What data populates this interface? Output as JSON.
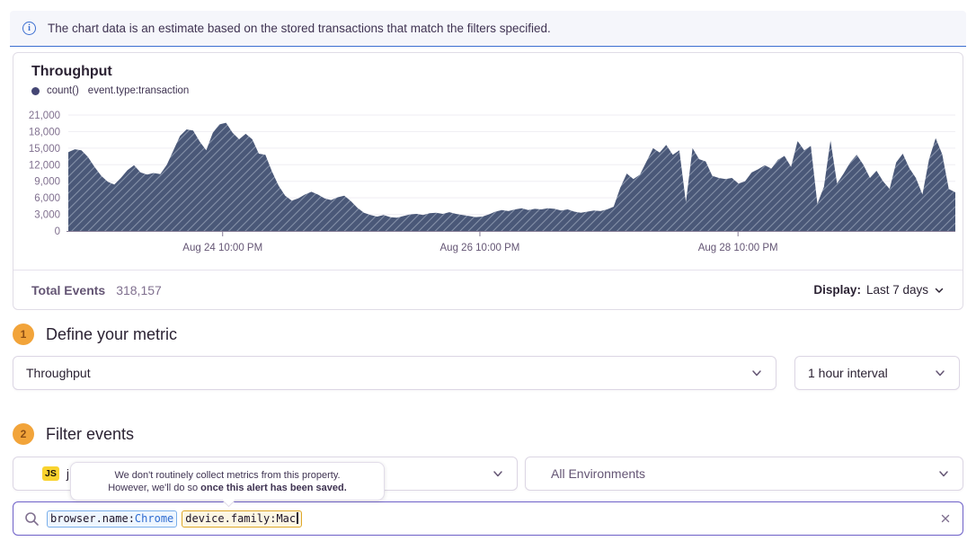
{
  "banner": {
    "text": "The chart data is an estimate based on the stored transactions that match the filters specified."
  },
  "chart_panel": {
    "title": "Throughput",
    "legend_series": "count()",
    "legend_query": "event.type:transaction",
    "total_label": "Total Events",
    "total_value": "318,157",
    "display_label": "Display:",
    "display_value": "Last 7 days"
  },
  "chart_data": {
    "type": "area",
    "title": "Throughput",
    "series_name": "count()",
    "query": "event.type:transaction",
    "ylabel": "",
    "xlabel": "",
    "ylim": [
      0,
      21000
    ],
    "yticks": [
      0,
      3000,
      6000,
      9000,
      12000,
      15000,
      18000,
      21000
    ],
    "xticks": [
      {
        "label": "Aug 24 10:00 PM",
        "f": 0.174
      },
      {
        "label": "Aug 26 10:00 PM",
        "f": 0.464
      },
      {
        "label": "Aug 28 10:00 PM",
        "f": 0.755
      }
    ],
    "period": "Last 7 days",
    "interval": "1 hour",
    "total_events": 318157,
    "grid": true,
    "fill_color": "#4a5878",
    "hatch_color": "#9aa5ba",
    "values": [
      14300,
      14800,
      14600,
      13400,
      11600,
      10000,
      8900,
      8400,
      9600,
      11000,
      11900,
      10600,
      10200,
      10500,
      10300,
      12000,
      14600,
      17200,
      18400,
      18200,
      16200,
      14600,
      17800,
      19300,
      19600,
      17800,
      16600,
      17600,
      16600,
      14000,
      13800,
      10800,
      8200,
      6400,
      5500,
      5900,
      6600,
      7100,
      6600,
      5900,
      5600,
      6100,
      6400,
      5400,
      4200,
      3300,
      2900,
      2600,
      2900,
      2500,
      2400,
      2700,
      3000,
      3100,
      2900,
      3200,
      3300,
      3100,
      3400,
      3100,
      2900,
      2700,
      2500,
      2600,
      3000,
      3500,
      3800,
      3600,
      3900,
      4100,
      3800,
      4000,
      3900,
      4100,
      4000,
      3700,
      3900,
      3500,
      3300,
      3500,
      3700,
      3600,
      3900,
      4400,
      7800,
      10400,
      9400,
      10200,
      12600,
      15000,
      14200,
      15600,
      13800,
      14600,
      5200,
      15000,
      13000,
      12600,
      10000,
      9600,
      9400,
      9600,
      8600,
      9000,
      10600,
      11200,
      11900,
      11300,
      12900,
      13600,
      11600,
      16300,
      14600,
      15400,
      4900,
      8000,
      16400,
      8600,
      10400,
      12400,
      13800,
      12000,
      9600,
      10900,
      9000,
      7600,
      12400,
      14000,
      11400,
      9600,
      6600,
      13000,
      16800,
      13900,
      7600,
      7000
    ]
  },
  "sections": {
    "metric": {
      "number": "1",
      "title": "Define your metric",
      "metric_value": "Throughput",
      "interval_value": "1 hour interval"
    },
    "filter": {
      "number": "2",
      "title": "Filter events",
      "project_badge": "JS",
      "project_label": "j",
      "environment_value": "All Environments"
    }
  },
  "tooltip": {
    "line1": "We don't routinely collect metrics from this property.",
    "line2_prefix": "However, we'll do so ",
    "line2_bold": "once this alert has been saved."
  },
  "search": {
    "tokens": [
      {
        "key": "browser.name:",
        "value": "Chrome"
      },
      {
        "key": "device.family:",
        "value": "Mac"
      }
    ]
  },
  "colors": {
    "accent_purple": "#6d5fc7",
    "banner_blue": "#3c6fd1",
    "badge_orange": "#f2a43a",
    "js_yellow": "#f9d32f",
    "area_fill": "#4a5878",
    "axis_text": "#80708f"
  }
}
